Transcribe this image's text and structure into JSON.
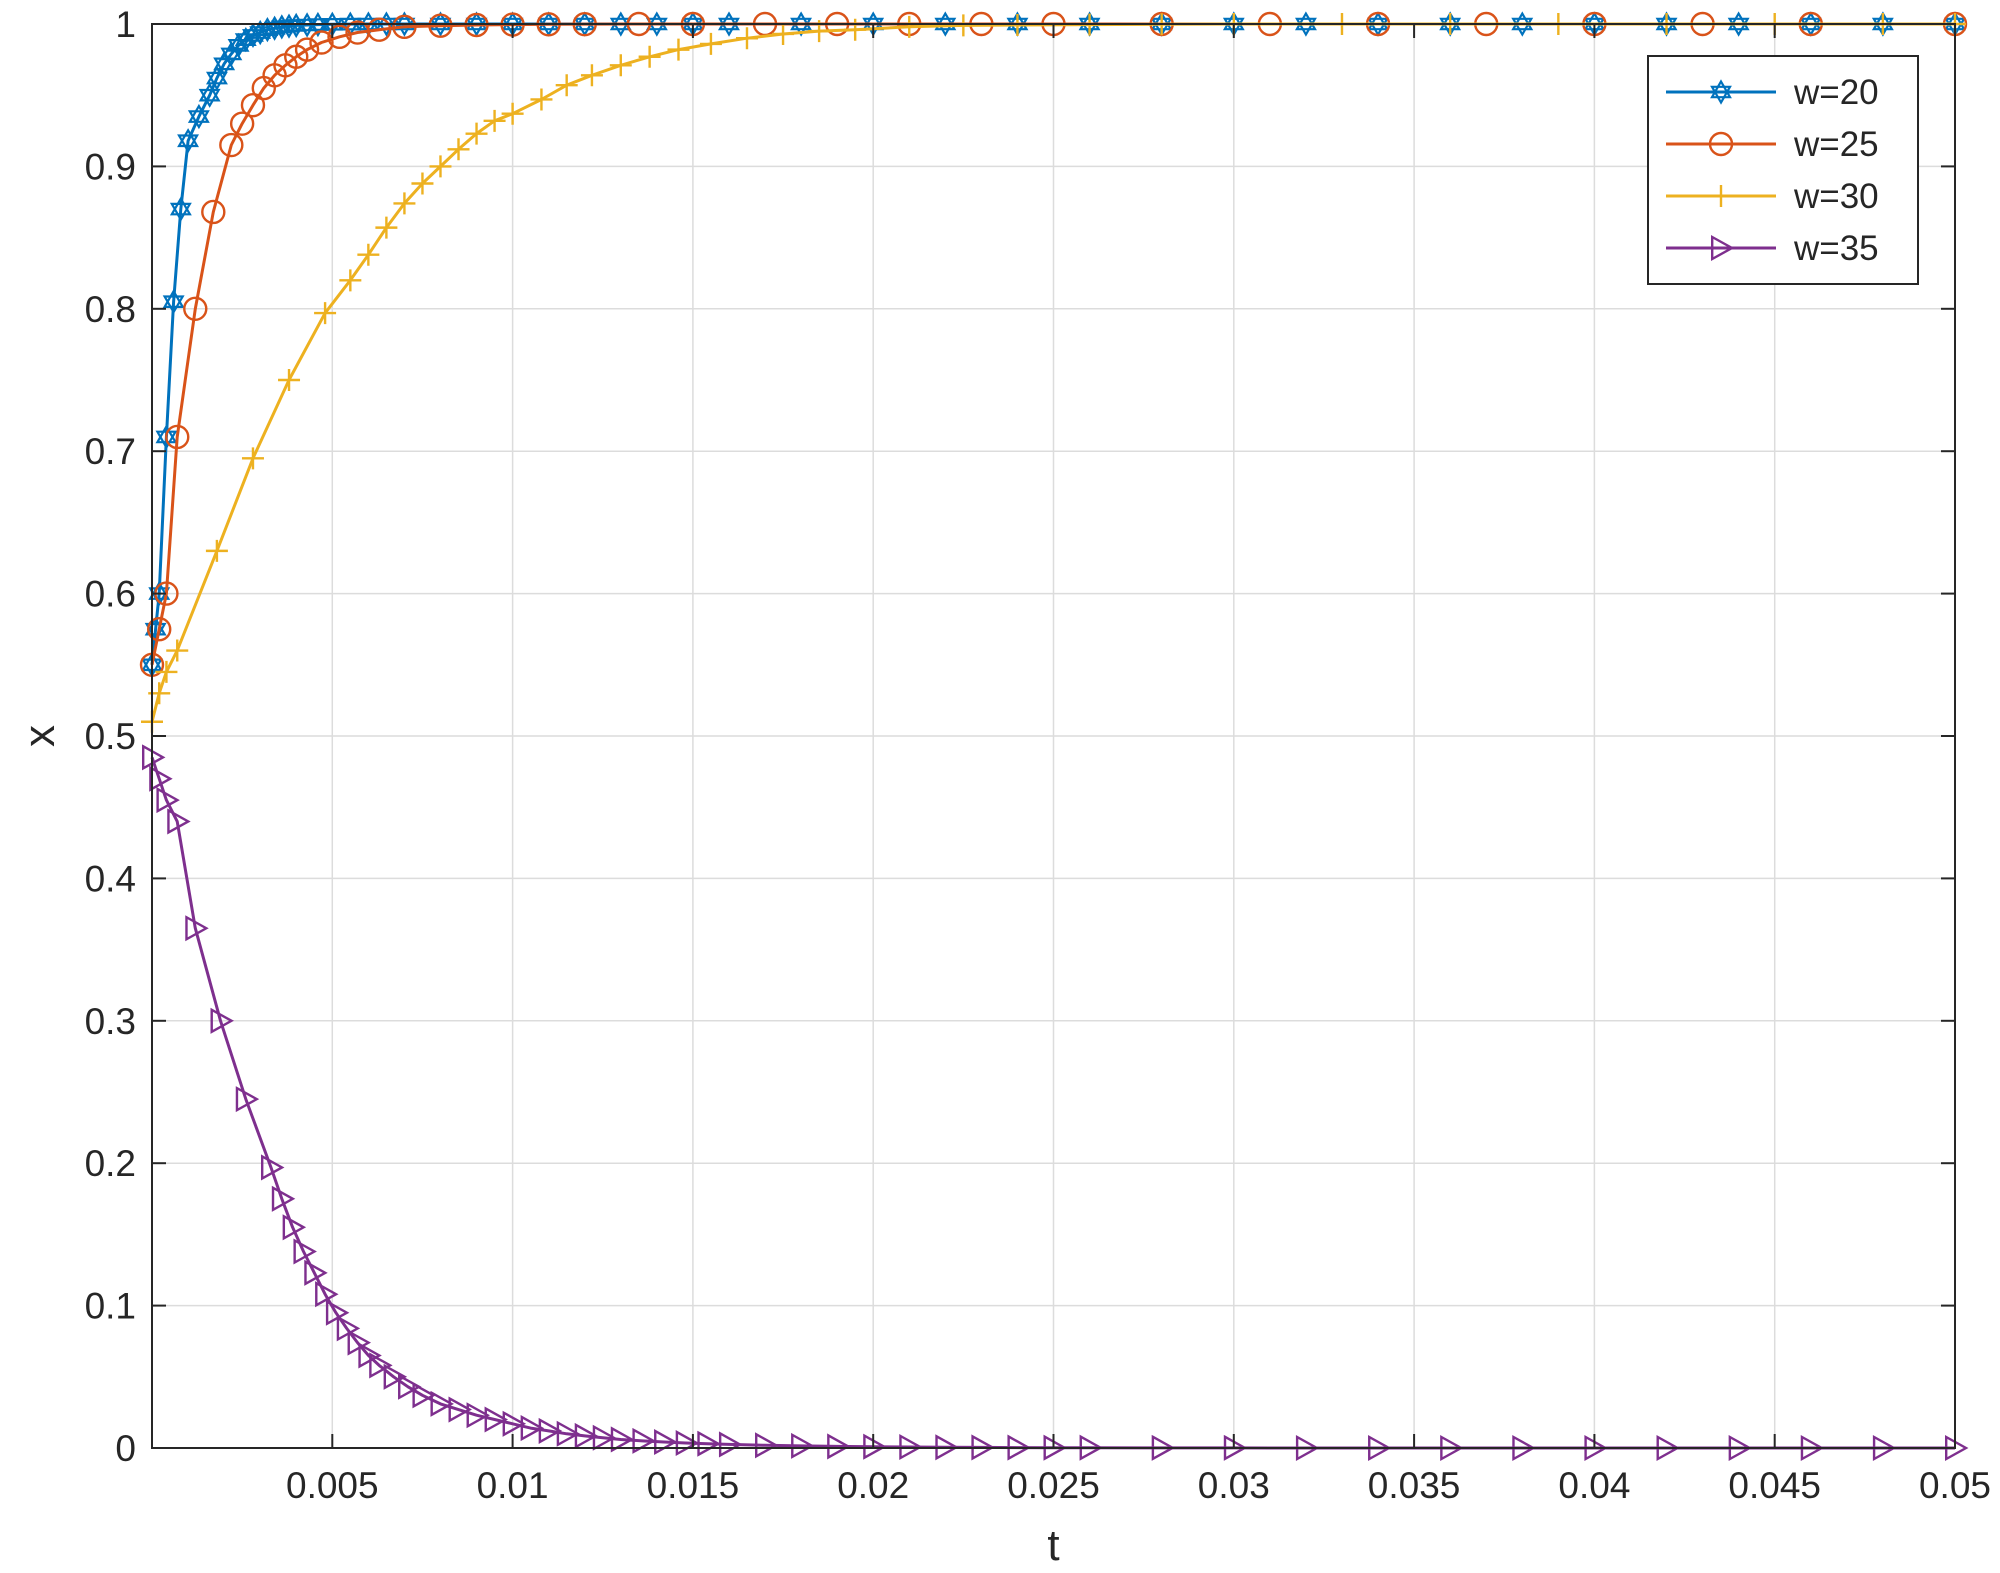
{
  "chart_data": {
    "type": "line",
    "xlabel": "t",
    "ylabel": "x",
    "xlim": [
      0,
      0.05
    ],
    "ylim": [
      0,
      1
    ],
    "grid": true,
    "legend_position": "top-right",
    "x_ticks": [
      0.005,
      0.01,
      0.015,
      0.02,
      0.025,
      0.03,
      0.035,
      0.04,
      0.045,
      0.05
    ],
    "x_tick_labels": [
      "0.005",
      "0.01",
      "0.015",
      "0.02",
      "0.025",
      "0.03",
      "0.035",
      "0.04",
      "0.045",
      "0.05"
    ],
    "y_ticks": [
      0,
      0.1,
      0.2,
      0.3,
      0.4,
      0.5,
      0.6,
      0.7,
      0.8,
      0.9,
      1
    ],
    "y_tick_labels": [
      "0",
      "0.1",
      "0.2",
      "0.3",
      "0.4",
      "0.5",
      "0.6",
      "0.7",
      "0.8",
      "0.9",
      "1"
    ],
    "series": [
      {
        "name": "w=20",
        "color": "#0072BD",
        "marker": "hexagram",
        "x": [
          0,
          0.0001,
          0.0002,
          0.0004,
          0.0006,
          0.0008,
          0.001,
          0.0013,
          0.0016,
          0.0018,
          0.002,
          0.0022,
          0.0024,
          0.0026,
          0.0028,
          0.003,
          0.0032,
          0.0034,
          0.0036,
          0.0038,
          0.004,
          0.0043,
          0.0046,
          0.005,
          0.0055,
          0.006,
          0.0065,
          0.007,
          0.008,
          0.009,
          0.01,
          0.011,
          0.012,
          0.013,
          0.014,
          0.015,
          0.016,
          0.018,
          0.02,
          0.022,
          0.024,
          0.026,
          0.028,
          0.03,
          0.032,
          0.034,
          0.036,
          0.038,
          0.04,
          0.042,
          0.044,
          0.046,
          0.048,
          0.05
        ],
        "y": [
          0.55,
          0.575,
          0.6,
          0.71,
          0.805,
          0.87,
          0.918,
          0.935,
          0.95,
          0.962,
          0.972,
          0.979,
          0.985,
          0.989,
          0.992,
          0.994,
          0.996,
          0.997,
          0.998,
          0.9985,
          0.999,
          0.9993,
          0.9996,
          0.9998,
          0.9999,
          1,
          1,
          1,
          1,
          1,
          1,
          1,
          1,
          1,
          1,
          1,
          1,
          1,
          1,
          1,
          1,
          1,
          1,
          1,
          1,
          1,
          1,
          1,
          1,
          1,
          1,
          1,
          1,
          1
        ]
      },
      {
        "name": "w=25",
        "color": "#D95319",
        "marker": "circle",
        "x": [
          0,
          0.0002,
          0.0004,
          0.0007,
          0.0012,
          0.0017,
          0.0022,
          0.0025,
          0.0028,
          0.0031,
          0.0034,
          0.0037,
          0.004,
          0.0043,
          0.0047,
          0.0052,
          0.0057,
          0.0063,
          0.007,
          0.008,
          0.009,
          0.01,
          0.011,
          0.012,
          0.0135,
          0.015,
          0.017,
          0.019,
          0.021,
          0.023,
          0.025,
          0.028,
          0.031,
          0.034,
          0.037,
          0.04,
          0.043,
          0.046,
          0.05
        ],
        "y": [
          0.55,
          0.575,
          0.6,
          0.71,
          0.8,
          0.868,
          0.915,
          0.93,
          0.943,
          0.955,
          0.964,
          0.971,
          0.977,
          0.982,
          0.987,
          0.991,
          0.994,
          0.996,
          0.998,
          0.9988,
          0.9993,
          0.9996,
          0.9998,
          0.9999,
          1,
          1,
          1,
          1,
          1,
          1,
          1,
          1,
          1,
          1,
          1,
          1,
          1,
          1,
          1
        ]
      },
      {
        "name": "w=30",
        "color": "#EDB120",
        "marker": "plus",
        "x": [
          0,
          0.0002,
          0.0004,
          0.0007,
          0.0018,
          0.0028,
          0.0038,
          0.0048,
          0.0055,
          0.006,
          0.0065,
          0.007,
          0.0075,
          0.008,
          0.0085,
          0.009,
          0.0095,
          0.01,
          0.0108,
          0.0115,
          0.0122,
          0.013,
          0.0138,
          0.0146,
          0.0155,
          0.0165,
          0.0175,
          0.0185,
          0.0195,
          0.021,
          0.0225,
          0.024,
          0.026,
          0.028,
          0.03,
          0.033,
          0.036,
          0.039,
          0.042,
          0.045,
          0.048,
          0.05
        ],
        "y": [
          0.51,
          0.53,
          0.545,
          0.56,
          0.63,
          0.695,
          0.75,
          0.797,
          0.82,
          0.838,
          0.857,
          0.874,
          0.888,
          0.9,
          0.912,
          0.923,
          0.932,
          0.937,
          0.947,
          0.957,
          0.964,
          0.971,
          0.977,
          0.982,
          0.986,
          0.99,
          0.993,
          0.995,
          0.996,
          0.998,
          0.999,
          0.9993,
          0.9996,
          0.9998,
          1,
          1,
          1,
          1,
          1,
          1,
          1,
          1
        ]
      },
      {
        "name": "w=35",
        "color": "#7E2F8E",
        "marker": "triangle-right",
        "x": [
          0,
          0.0002,
          0.0004,
          0.0007,
          0.0012,
          0.0019,
          0.0026,
          0.0033,
          0.0036,
          0.0039,
          0.0042,
          0.0045,
          0.0048,
          0.0051,
          0.0054,
          0.0057,
          0.006,
          0.0063,
          0.0067,
          0.0071,
          0.0075,
          0.008,
          0.0085,
          0.009,
          0.0095,
          0.01,
          0.0105,
          0.011,
          0.0115,
          0.012,
          0.0125,
          0.013,
          0.0136,
          0.0142,
          0.0148,
          0.0154,
          0.016,
          0.017,
          0.018,
          0.019,
          0.02,
          0.021,
          0.022,
          0.023,
          0.024,
          0.025,
          0.026,
          0.028,
          0.03,
          0.032,
          0.034,
          0.036,
          0.038,
          0.04,
          0.042,
          0.044,
          0.046,
          0.048,
          0.05
        ],
        "y": [
          0.485,
          0.47,
          0.455,
          0.44,
          0.365,
          0.3,
          0.245,
          0.197,
          0.175,
          0.155,
          0.138,
          0.123,
          0.108,
          0.095,
          0.084,
          0.074,
          0.065,
          0.058,
          0.05,
          0.043,
          0.037,
          0.031,
          0.027,
          0.023,
          0.02,
          0.017,
          0.014,
          0.012,
          0.01,
          0.0085,
          0.0072,
          0.006,
          0.005,
          0.0042,
          0.0035,
          0.003,
          0.0025,
          0.0019,
          0.0015,
          0.0011,
          0.0009,
          0.0007,
          0.0005,
          0.0004,
          0.0003,
          0.0002,
          0.0002,
          0.0001,
          0.0001,
          0,
          0,
          0,
          0,
          0,
          0,
          0,
          0,
          0,
          0
        ]
      }
    ]
  }
}
